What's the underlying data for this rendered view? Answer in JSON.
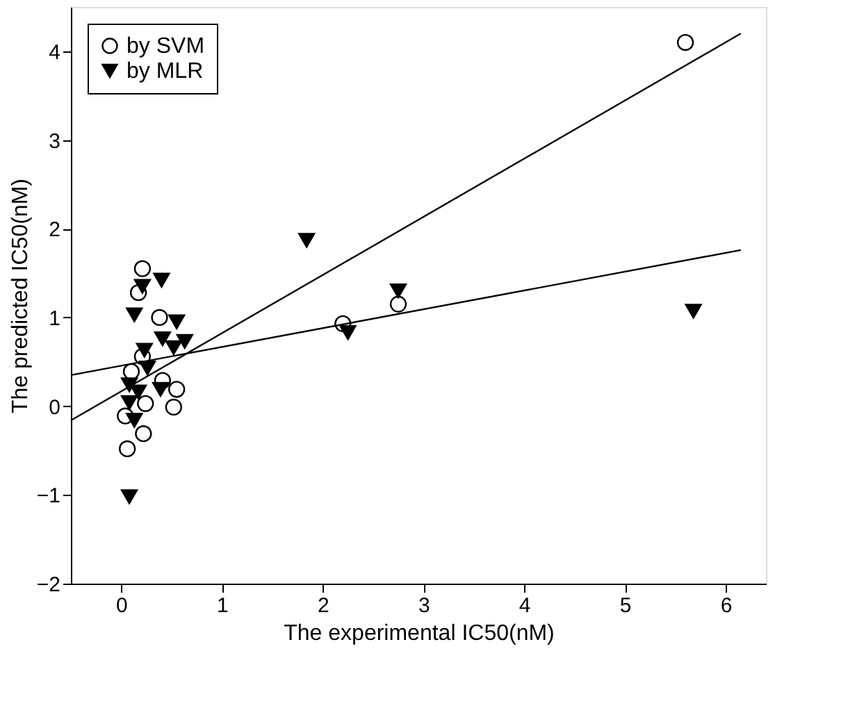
{
  "chart_data": {
    "type": "scatter",
    "xlabel": "The experimental IC50(nM)",
    "ylabel": "The predicted IC50(nM)",
    "xlim": [
      -0.5,
      6.4
    ],
    "ylim": [
      -2,
      4.5
    ],
    "xticks": [
      0,
      1,
      2,
      3,
      4,
      5,
      6
    ],
    "yticks": [
      -2,
      -1,
      0,
      1,
      2,
      3,
      4
    ],
    "grid": false,
    "legend": "top left",
    "series": [
      {
        "name": "by SVM",
        "marker": "circle",
        "color": "#000000",
        "x": [
          0.21,
          0.17,
          0.38,
          0.21,
          0.1,
          0.41,
          0.55,
          0.52,
          0.24,
          0.04,
          0.22,
          0.06,
          2.2,
          2.75,
          5.6
        ],
        "values": [
          1.55,
          1.28,
          1.0,
          0.56,
          0.39,
          0.29,
          0.19,
          -0.01,
          0.03,
          -0.11,
          -0.31,
          -0.48,
          0.93,
          1.15,
          4.1
        ]
      },
      {
        "name": "by MLR",
        "marker": "triangle",
        "color": "#000000",
        "x": [
          0.4,
          0.21,
          0.13,
          0.55,
          0.41,
          0.63,
          0.52,
          0.23,
          0.26,
          0.39,
          0.08,
          0.17,
          0.08,
          0.13,
          0.08,
          1.84,
          2.75,
          2.25,
          5.68
        ],
        "values": [
          1.42,
          1.35,
          1.03,
          0.95,
          0.76,
          0.73,
          0.66,
          0.63,
          0.43,
          0.19,
          0.24,
          0.16,
          0.04,
          -0.16,
          -1.02,
          1.87,
          1.3,
          0.83,
          1.07
        ]
      },
      {
        "type": "line",
        "color": "#000000",
        "x": [
          -0.5,
          6.15
        ],
        "values": [
          -0.16,
          4.2
        ]
      },
      {
        "type": "line",
        "color": "#000000",
        "x": [
          -0.5,
          6.15
        ],
        "values": [
          0.35,
          1.76
        ]
      }
    ]
  }
}
